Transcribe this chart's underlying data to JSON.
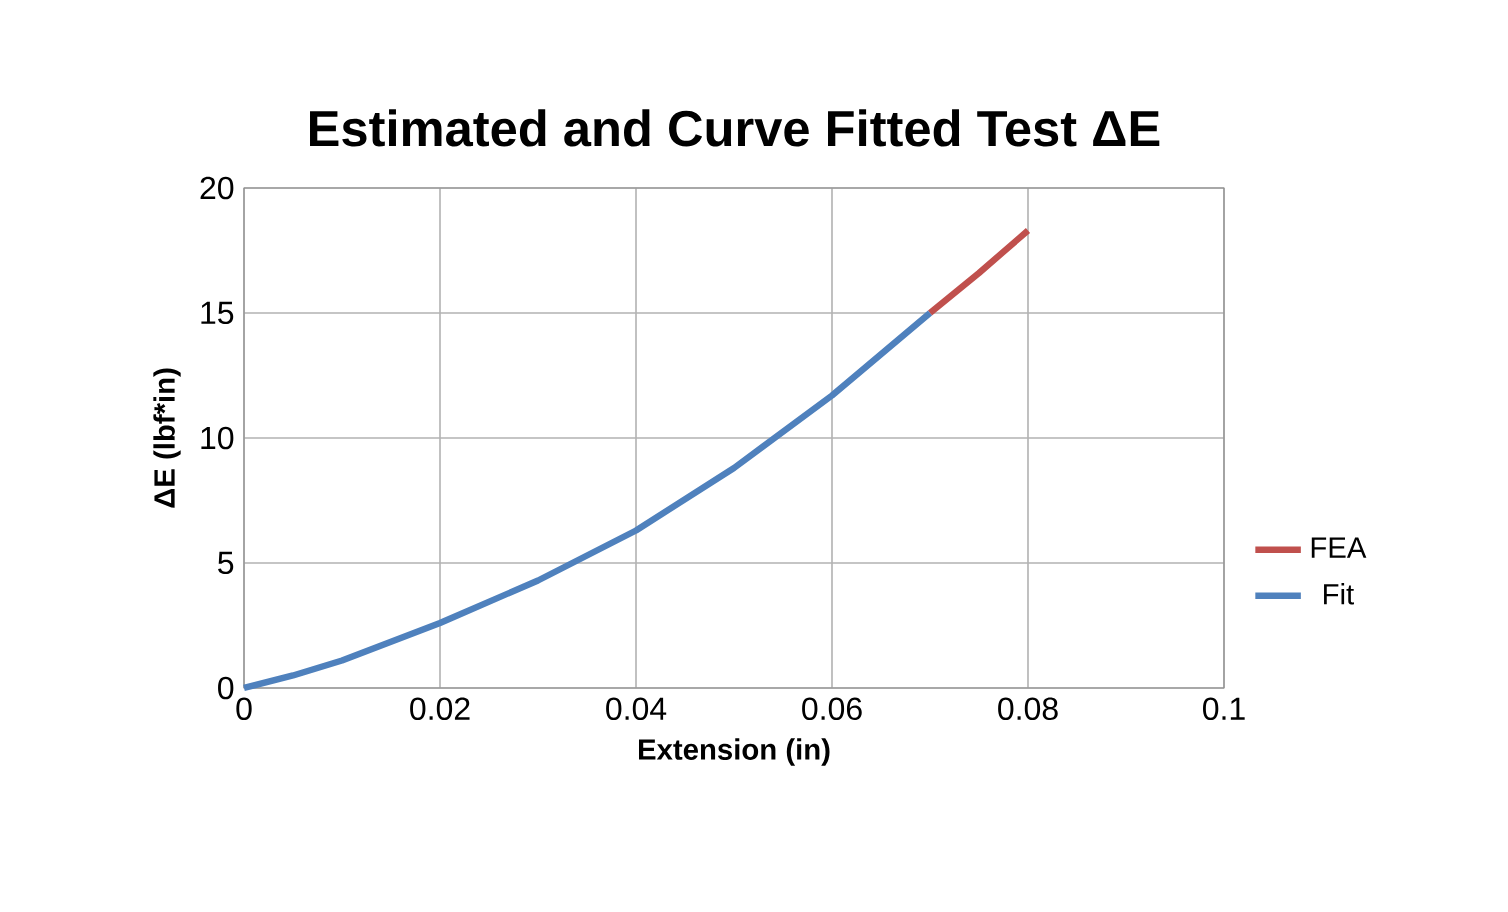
{
  "chart_data": {
    "type": "line",
    "title": "Estimated and Curve Fitted Test ΔE",
    "xlabel": "Extension (in)",
    "ylabel": "ΔE (lbf*in)",
    "xlim": [
      0,
      0.1
    ],
    "ylim": [
      0,
      20
    ],
    "xticks": [
      0,
      0.02,
      0.04,
      0.06,
      0.08,
      0.1
    ],
    "yticks": [
      0,
      5,
      10,
      15,
      20
    ],
    "grid": true,
    "legend": "right",
    "series": [
      {
        "name": "FEA",
        "color": "#c0504d",
        "x": [
          0.07,
          0.075,
          0.08
        ],
        "values": [
          15.0,
          16.6,
          18.3
        ]
      },
      {
        "name": "Fit",
        "color": "#4f81bd",
        "x": [
          0,
          0.005,
          0.01,
          0.02,
          0.03,
          0.04,
          0.05,
          0.06,
          0.07
        ],
        "values": [
          0,
          0.5,
          1.1,
          2.6,
          4.3,
          6.3,
          8.8,
          11.7,
          15.0
        ]
      }
    ]
  }
}
